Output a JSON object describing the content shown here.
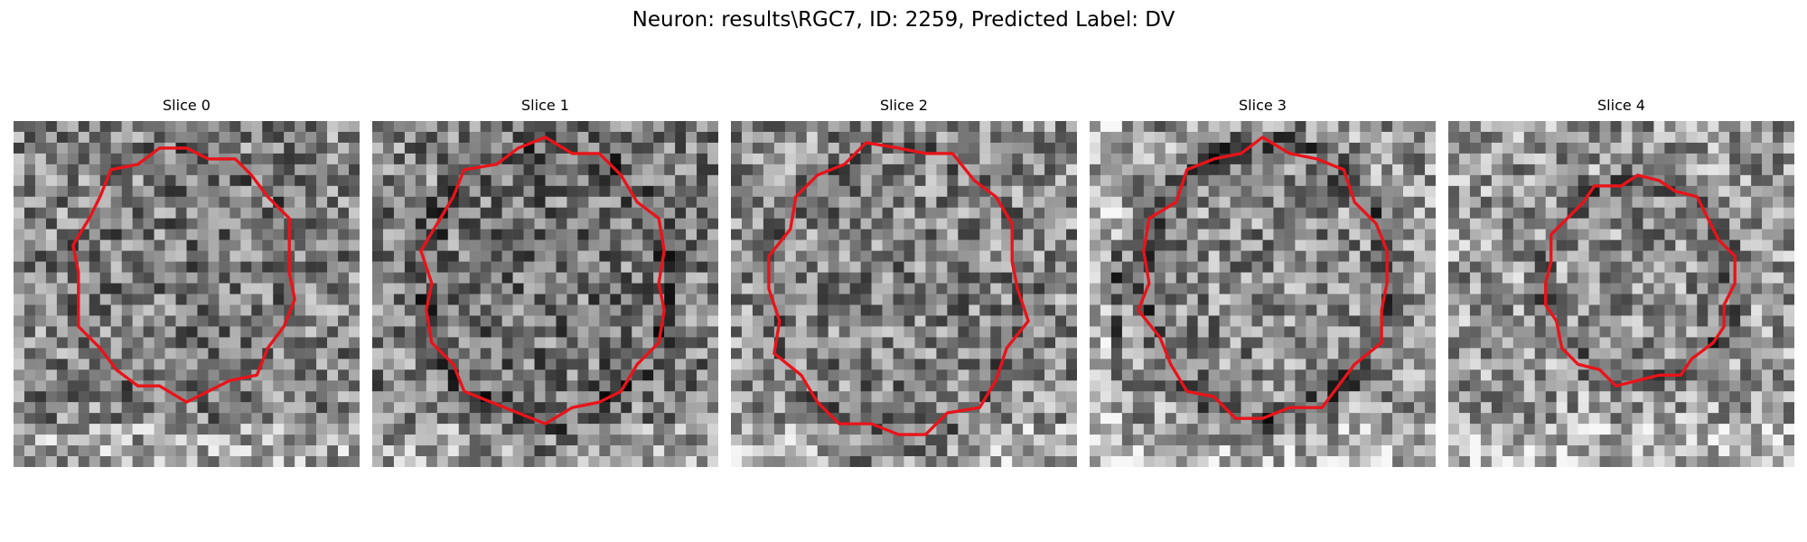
{
  "figure": {
    "title": "Neuron: results\\RGC7, ID: 2259, Predicted Label: DV",
    "panels": [
      {
        "title": "Slice 0"
      },
      {
        "title": "Slice 1"
      },
      {
        "title": "Slice 2"
      },
      {
        "title": "Slice 3"
      },
      {
        "title": "Slice 4"
      }
    ],
    "contour_color": "#e8141a",
    "colormap": "grayscale"
  }
}
